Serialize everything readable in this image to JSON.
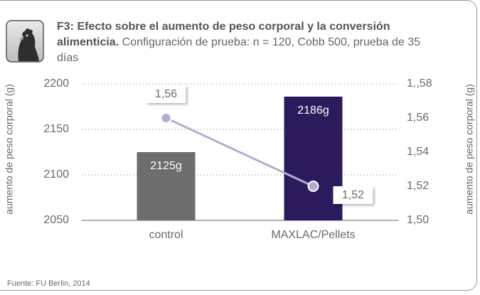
{
  "chart_data": {
    "type": "bar",
    "title": "F3: Efecto sobre el aumento de peso corporal y la conversión alimenticia.",
    "subtitle": "Configuración de prueba: n = 120, Cobb 500, prueba de 35 días",
    "ylabel": "aumento de peso corporal (g)",
    "y2label": "aumento de peso corporal (g)",
    "source": "Fuente: FU Berlin, 2014",
    "categories": [
      "control",
      "MAXLAC/Pellets"
    ],
    "series": [
      {
        "type": "bar",
        "colors": [
          "#6d6d6d",
          "#2b1b5c"
        ],
        "values": [
          2125,
          2186
        ],
        "value_labels": [
          "2125g",
          "2186g"
        ]
      },
      {
        "type": "line",
        "axis": "y2",
        "color": "#b3abd3",
        "values": [
          1.56,
          1.52
        ],
        "value_labels": [
          "1,56",
          "1,52"
        ]
      }
    ],
    "ylim": [
      2050,
      2200
    ],
    "yticks": [
      2050,
      2100,
      2150,
      2200
    ],
    "y2lim": [
      1.5,
      1.58
    ],
    "y2ticks": [
      {
        "value": 1.5,
        "label": "1,50"
      },
      {
        "value": 1.52,
        "label": "1,52"
      },
      {
        "value": 1.54,
        "label": "1,54"
      },
      {
        "value": 1.56,
        "label": "1,56"
      },
      {
        "value": 1.58,
        "label": "1.,58"
      }
    ],
    "grid": true
  }
}
